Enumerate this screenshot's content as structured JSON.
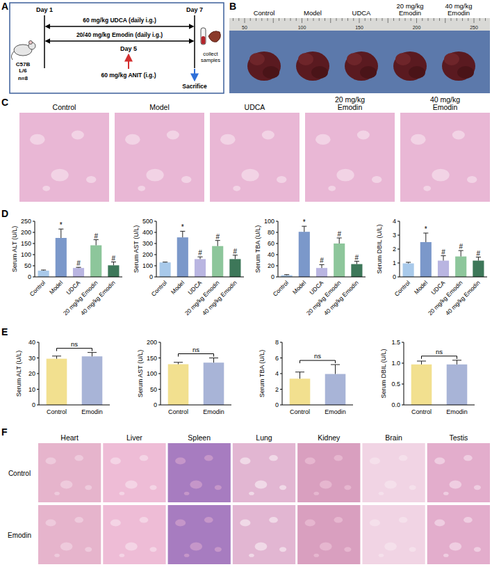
{
  "panel_labels": [
    "A",
    "B",
    "C",
    "D",
    "E",
    "F"
  ],
  "panel_a": {
    "day_start": "Day 1",
    "day_mid": "Day 5",
    "day_end": "Day 7",
    "strain": [
      "C57B",
      "L/6"
    ],
    "n": "n=8",
    "treatment_1": "60 mg/kg UDCA (daily i.g.)",
    "treatment_2": "20/40 mg/kg Emodin (daily i.g.)",
    "model_agent": "60 mg/kg ANIT (i.g.)",
    "endpoint": "Sacrifice",
    "samples": [
      "collect",
      "samples"
    ]
  },
  "panel_b": {
    "groups": [
      "Control",
      "Model",
      "UDCA",
      "20 mg/kg Emodin",
      "40 mg/kg Emodin"
    ],
    "ruler_labels": [
      50,
      100,
      150,
      200,
      250
    ]
  },
  "panel_c": {
    "groups": [
      "Control",
      "Model",
      "UDCA",
      "20 mg/kg Emodin",
      "40 mg/kg Emodin"
    ]
  },
  "panel_f": {
    "rows": [
      "Control",
      "Emodin"
    ],
    "columns": [
      "Heart",
      "Liver",
      "Spleen",
      "Lung",
      "Kidney",
      "Brain",
      "Testis"
    ]
  },
  "chart_data": [
    {
      "type": "bar",
      "y_label": "Serum ALT (U/L)",
      "categories": [
        "Control",
        "Model",
        "UDCA",
        "20 mg/kg Emodin",
        "40 mg/kg Emodin"
      ],
      "values": [
        28,
        175,
        40,
        142,
        52
      ],
      "errors": [
        3,
        40,
        3,
        25,
        15
      ],
      "annotations": [
        null,
        "*",
        "#",
        "#",
        "#"
      ],
      "colors": [
        "#a8c9ea",
        "#7b98ca",
        "#b9b5e1",
        "#8dc69b",
        "#3d7759"
      ],
      "ylim": [
        0,
        250
      ],
      "yticks": [
        0,
        50,
        100,
        150,
        200,
        250
      ],
      "grid": false
    },
    {
      "type": "bar",
      "y_label": "Serum AST (U/L)",
      "categories": [
        "Control",
        "Model",
        "UDCA",
        "20 mg/kg Emodin",
        "40 mg/kg Emodin"
      ],
      "values": [
        130,
        355,
        160,
        277,
        160
      ],
      "errors": [
        3,
        55,
        20,
        50,
        35
      ],
      "annotations": [
        null,
        "*",
        "#",
        "#",
        "#"
      ],
      "colors": [
        "#a8c9ea",
        "#7b98ca",
        "#b9b5e1",
        "#8dc69b",
        "#3d7759"
      ],
      "ylim": [
        0,
        500
      ],
      "yticks": [
        0,
        100,
        200,
        300,
        400,
        500
      ],
      "grid": false
    },
    {
      "type": "bar",
      "y_label": "Serum TBA (U/L)",
      "categories": [
        "Control",
        "Model",
        "UDCA",
        "20 mg/kg Emodin",
        "40 mg/kg Emodin"
      ],
      "values": [
        3,
        81,
        16,
        60,
        23
      ],
      "errors": [
        1,
        10,
        6,
        10,
        5
      ],
      "annotations": [
        null,
        "*",
        "#",
        "#",
        "#"
      ],
      "colors": [
        "#a8c9ea",
        "#7b98ca",
        "#b9b5e1",
        "#8dc69b",
        "#3d7759"
      ],
      "ylim": [
        0,
        100
      ],
      "yticks": [
        0,
        20,
        40,
        60,
        80,
        100
      ],
      "grid": false
    },
    {
      "type": "bar",
      "y_label": "Serum DBIL (U/L)",
      "categories": [
        "Control",
        "Model",
        "UDCA",
        "20 mg/kg Emodin",
        "40 mg/kg Emodin"
      ],
      "values": [
        0.97,
        2.5,
        1.17,
        1.47,
        1.17
      ],
      "errors": [
        0.08,
        0.65,
        0.35,
        0.42,
        0.25
      ],
      "annotations": [
        null,
        "*",
        "#",
        "#",
        "#"
      ],
      "colors": [
        "#a8c9ea",
        "#7b98ca",
        "#b9b5e1",
        "#8dc69b",
        "#3d7759"
      ],
      "ylim": [
        0,
        4
      ],
      "yticks": [
        0,
        1,
        2,
        3,
        4
      ],
      "grid": false
    },
    {
      "type": "bar",
      "y_label": "Serum ALT (U/L)",
      "categories": [
        "Control",
        "Emodin"
      ],
      "values": [
        29.5,
        31
      ],
      "errors": [
        1.7,
        2.5
      ],
      "annotation": "ns",
      "colors": [
        "#f2e08f",
        "#a8b4d7"
      ],
      "ylim": [
        0,
        40
      ],
      "yticks": [
        0,
        10,
        20,
        30,
        40
      ],
      "grid": false
    },
    {
      "type": "bar",
      "y_label": "Serum AST (U/L)",
      "categories": [
        "Control",
        "Emodin"
      ],
      "values": [
        130,
        135
      ],
      "errors": [
        6,
        15
      ],
      "annotation": "ns",
      "colors": [
        "#f2e08f",
        "#a8b4d7"
      ],
      "ylim": [
        0,
        200
      ],
      "yticks": [
        0,
        50,
        100,
        150,
        200
      ],
      "grid": false
    },
    {
      "type": "bar",
      "y_label": "Serum TBA (U/L)",
      "categories": [
        "Control",
        "Emodin"
      ],
      "values": [
        3.35,
        3.95
      ],
      "errors": [
        0.85,
        1.2
      ],
      "annotation": "ns",
      "colors": [
        "#f2e08f",
        "#a8b4d7"
      ],
      "ylim": [
        0,
        8
      ],
      "yticks": [
        0,
        2,
        4,
        6,
        8
      ],
      "grid": false
    },
    {
      "type": "bar",
      "y_label": "Serum DBIL (U/L)",
      "categories": [
        "Control",
        "Emodin"
      ],
      "values": [
        0.97,
        0.97
      ],
      "errors": [
        0.08,
        0.1
      ],
      "annotation": "ns",
      "colors": [
        "#f2e08f",
        "#a8b4d7"
      ],
      "ylim": [
        0,
        1.5
      ],
      "yticks": [
        {
          "value": 0,
          "label": "0.0"
        },
        {
          "value": 0.5,
          "label": "0.5"
        },
        {
          "value": 1,
          "label": "1.0"
        },
        {
          "value": 1.5,
          "label": "1.5"
        }
      ],
      "grid": false
    }
  ]
}
